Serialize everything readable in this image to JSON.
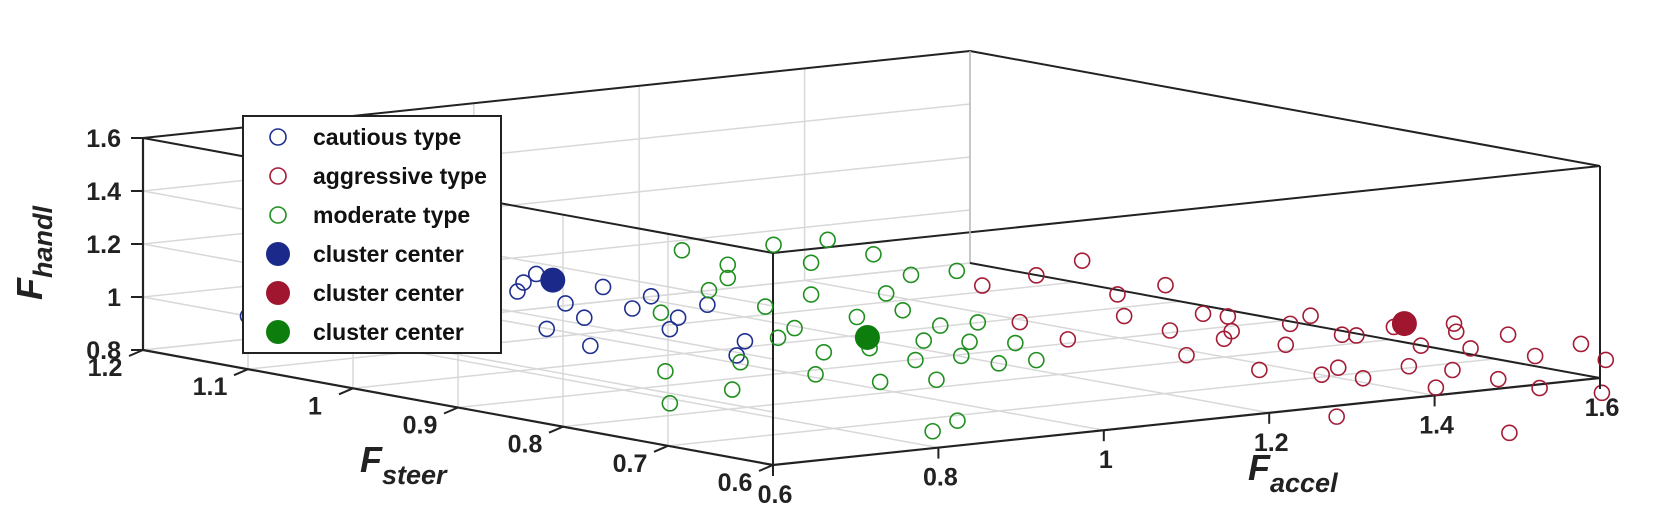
{
  "chart_data": {
    "type": "scatter3d",
    "axes": {
      "x": {
        "label_main": "F",
        "label_sub": "accel",
        "ticks": [
          "0.6",
          "0.8",
          "1",
          "1.2",
          "1.4",
          "1.6"
        ]
      },
      "y": {
        "label_main": "F",
        "label_sub": "steer",
        "ticks": [
          "0.6",
          "0.7",
          "0.8",
          "0.9",
          "1",
          "1.1",
          "1.2"
        ]
      },
      "z": {
        "label_main": "F",
        "label_sub": "handl",
        "ticks": [
          "0.8",
          "1",
          "1.2",
          "1.4",
          "1.6"
        ]
      }
    },
    "grid": true,
    "legend_position": "top-left",
    "legend": [
      {
        "label": "cautious type",
        "marker": "open",
        "color": "#1f2f8f"
      },
      {
        "label": "aggressive type",
        "marker": "open",
        "color": "#a31b35"
      },
      {
        "label": "moderate type",
        "marker": "open",
        "color": "#1f8f1f"
      },
      {
        "label": "cluster center",
        "marker": "filled",
        "color": "#1b2a8a"
      },
      {
        "label": "cluster center",
        "marker": "filled",
        "color": "#a0162e"
      },
      {
        "label": "cluster center",
        "marker": "filled",
        "color": "#0d7d0d"
      }
    ],
    "series": [
      {
        "name": "cautious type",
        "color": "#1f2f8f",
        "points": [
          [
            0.63,
            1.05,
            1.42
          ],
          [
            0.64,
            1.0,
            1.55
          ],
          [
            0.66,
            0.98,
            1.3
          ],
          [
            0.62,
            1.06,
            1.36
          ],
          [
            0.7,
            0.95,
            1.38
          ],
          [
            0.68,
            0.97,
            1.35
          ],
          [
            0.71,
            0.93,
            1.18
          ],
          [
            0.72,
            0.92,
            1.25
          ],
          [
            0.73,
            0.9,
            1.15
          ],
          [
            0.75,
            0.88,
            1.22
          ],
          [
            0.74,
            0.89,
            1.1
          ],
          [
            0.72,
            0.91,
            1.05
          ],
          [
            0.76,
            0.86,
            1.15
          ],
          [
            0.77,
            0.85,
            1.2
          ],
          [
            0.78,
            0.84,
            1.08
          ],
          [
            0.8,
            0.82,
            1.18
          ],
          [
            0.79,
            0.84,
            1.12
          ],
          [
            0.82,
            0.8,
            1.05
          ],
          [
            0.81,
            0.8,
            1.0
          ],
          [
            0.6,
            1.1,
            1.0
          ],
          [
            0.7,
            0.98,
            0.95
          ],
          [
            0.76,
            0.9,
            0.98
          ],
          [
            0.65,
            1.02,
            1.12
          ],
          [
            0.73,
            0.94,
            1.2
          ]
        ]
      },
      {
        "name": "aggressive type",
        "color": "#a31b35",
        "points": [
          [
            1.02,
            0.68,
            1.32
          ],
          [
            1.05,
            0.66,
            1.38
          ],
          [
            1.08,
            0.65,
            1.25
          ],
          [
            1.1,
            0.62,
            1.3
          ],
          [
            1.12,
            0.6,
            1.2
          ],
          [
            1.15,
            0.6,
            1.18
          ],
          [
            1.18,
            0.62,
            1.1
          ],
          [
            1.2,
            0.58,
            1.15
          ],
          [
            1.22,
            0.6,
            1.05
          ],
          [
            1.25,
            0.57,
            1.1
          ],
          [
            1.28,
            0.58,
            1.08
          ],
          [
            1.3,
            0.56,
            1.12
          ],
          [
            1.32,
            0.55,
            1.05
          ],
          [
            1.35,
            0.54,
            1.1
          ],
          [
            1.38,
            0.55,
            1.02
          ],
          [
            1.4,
            0.53,
            1.08
          ],
          [
            1.42,
            0.52,
            1.0
          ],
          [
            1.45,
            0.5,
            1.05
          ],
          [
            1.48,
            0.5,
            0.98
          ],
          [
            1.1,
            0.6,
            1.05
          ],
          [
            1.15,
            0.57,
            1.0
          ],
          [
            1.2,
            0.55,
            0.98
          ],
          [
            1.25,
            0.55,
            0.95
          ],
          [
            1.3,
            0.52,
            0.92
          ],
          [
            1.35,
            0.5,
            0.95
          ],
          [
            1.4,
            0.5,
            0.9
          ],
          [
            1.45,
            0.48,
            0.88
          ],
          [
            1.18,
            0.52,
            0.85
          ],
          [
            1.3,
            0.45,
            0.8
          ],
          [
            1.05,
            0.62,
            1.2
          ],
          [
            1.08,
            0.6,
            1.15
          ],
          [
            1.12,
            0.58,
            1.12
          ],
          [
            1.22,
            0.55,
            1.0
          ],
          [
            1.28,
            0.53,
            1.0
          ],
          [
            1.32,
            0.52,
            0.98
          ],
          [
            1.02,
            0.65,
            1.1
          ],
          [
            0.98,
            0.7,
            1.28
          ],
          [
            1.0,
            0.68,
            1.15
          ],
          [
            1.36,
            0.55,
            1.12
          ],
          [
            1.25,
            0.6,
            1.15
          ]
        ]
      },
      {
        "name": "moderate type",
        "color": "#1f8f1f",
        "points": [
          [
            0.82,
            0.86,
            1.35
          ],
          [
            0.85,
            0.84,
            1.3
          ],
          [
            0.88,
            0.82,
            1.38
          ],
          [
            0.9,
            0.8,
            1.32
          ],
          [
            0.92,
            0.8,
            1.4
          ],
          [
            0.95,
            0.78,
            1.35
          ],
          [
            0.97,
            0.76,
            1.28
          ],
          [
            1.0,
            0.74,
            1.3
          ],
          [
            0.84,
            0.85,
            1.2
          ],
          [
            0.87,
            0.82,
            1.15
          ],
          [
            0.9,
            0.8,
            1.2
          ],
          [
            0.93,
            0.78,
            1.12
          ],
          [
            0.96,
            0.76,
            1.15
          ],
          [
            0.98,
            0.74,
            1.1
          ],
          [
            1.0,
            0.72,
            1.12
          ],
          [
            0.86,
            0.8,
            1.05
          ],
          [
            0.89,
            0.78,
            1.0
          ],
          [
            0.92,
            0.76,
            1.02
          ],
          [
            0.95,
            0.74,
            0.98
          ],
          [
            0.98,
            0.72,
            1.0
          ],
          [
            1.0,
            0.7,
            0.98
          ],
          [
            1.02,
            0.7,
            1.05
          ],
          [
            0.84,
            0.82,
            0.95
          ],
          [
            0.88,
            0.78,
            0.92
          ],
          [
            0.92,
            0.75,
            0.9
          ],
          [
            0.95,
            0.72,
            0.92
          ],
          [
            0.8,
            0.86,
            0.9
          ],
          [
            0.83,
            0.82,
            0.85
          ],
          [
            0.78,
            0.84,
            0.8
          ],
          [
            0.92,
            0.7,
            0.75
          ],
          [
            0.95,
            0.7,
            0.78
          ],
          [
            0.99,
            0.72,
            1.05
          ],
          [
            0.85,
            0.84,
            1.25
          ],
          [
            0.94,
            0.76,
            1.22
          ],
          [
            0.82,
            0.88,
            1.1
          ],
          [
            0.96,
            0.74,
            1.05
          ],
          [
            1.02,
            0.68,
            1.0
          ],
          [
            0.88,
            0.8,
            1.08
          ]
        ]
      }
    ],
    "cluster_centers": [
      {
        "label": "cluster center",
        "color": "#1b2a8a",
        "point": [
          0.74,
          0.92,
          1.22
        ]
      },
      {
        "label": "cluster center",
        "color": "#a0162e",
        "point": [
          1.3,
          0.55,
          1.14
        ]
      },
      {
        "label": "cluster center",
        "color": "#0d7d0d",
        "point": [
          0.93,
          0.77,
          1.05
        ]
      }
    ]
  }
}
